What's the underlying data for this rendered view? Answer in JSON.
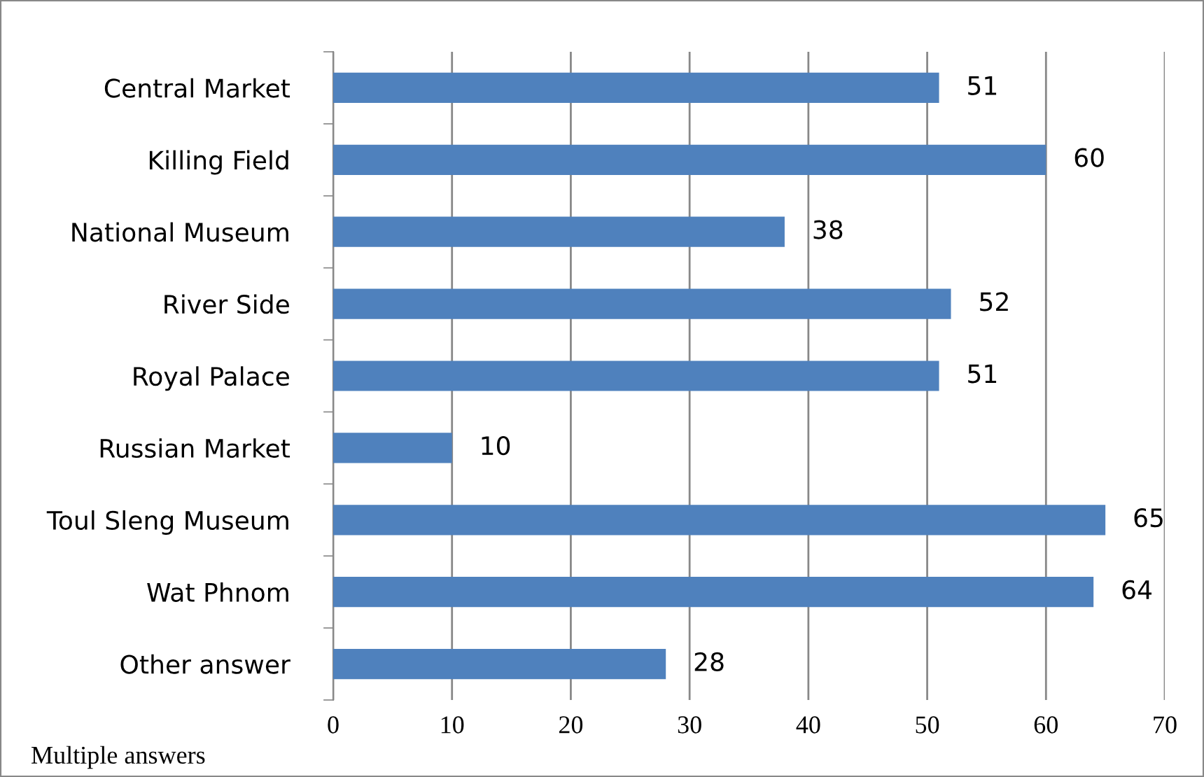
{
  "chart_data": {
    "type": "bar",
    "orientation": "horizontal",
    "categories": [
      "Central Market",
      "Killing Field",
      "National Museum",
      "River Side",
      "Royal Palace",
      "Russian Market",
      "Toul Sleng Museum",
      "Wat Phnom",
      "Other answer"
    ],
    "values": [
      51,
      60,
      38,
      52,
      51,
      10,
      65,
      64,
      28
    ],
    "color": "#4f81bd",
    "xlim": [
      0,
      70
    ],
    "xticks": [
      0,
      10,
      20,
      30,
      40,
      50,
      60,
      70
    ],
    "grid": "x",
    "data_labels": true,
    "annotations": [
      "Multiple answers"
    ]
  }
}
